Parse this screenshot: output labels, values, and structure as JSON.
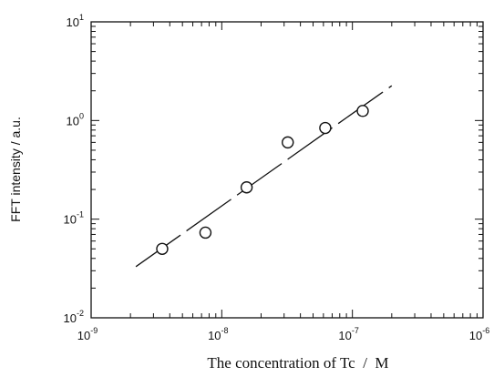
{
  "chart_data": {
    "type": "scatter",
    "title": "",
    "xlabel": "The concentration of Tc  /  M",
    "ylabel": "FFT intensity / a.u.",
    "x_scale": "log",
    "y_scale": "log",
    "xlim": [
      1e-09,
      1e-06
    ],
    "ylim": [
      0.01,
      10
    ],
    "x_tick_labels": [
      {
        "base": "10",
        "exp": "-9"
      },
      {
        "base": "10",
        "exp": "-8"
      },
      {
        "base": "10",
        "exp": "-7"
      },
      {
        "base": "10",
        "exp": "-6"
      }
    ],
    "y_tick_labels": [
      {
        "base": "10",
        "exp": "-2"
      },
      {
        "base": "10",
        "exp": "-1"
      },
      {
        "base": "10",
        "exp": "0"
      },
      {
        "base": "10",
        "exp": "1"
      }
    ],
    "grid": false,
    "marker": "open-circle",
    "series": [
      {
        "x": [
          3.5e-09,
          7.5e-09,
          1.55e-08,
          3.2e-08,
          6.2e-08,
          1.2e-07
        ],
        "y": [
          0.05,
          0.073,
          0.21,
          0.6,
          0.84,
          1.25
        ]
      }
    ],
    "fit_line": {
      "style": "dashed",
      "x": [
        2.2e-09,
        2e-07
      ],
      "y": [
        0.033,
        2.25
      ]
    }
  }
}
